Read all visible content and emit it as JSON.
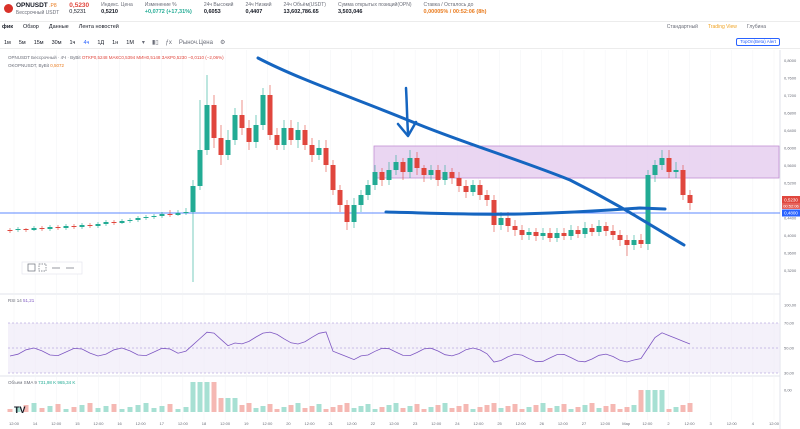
{
  "ticker": {
    "symbol": "OPNUSDT",
    "exchange_tag": ".P8",
    "price": "0,5230",
    "subtitle": "Бессрочный USDT",
    "sub_price": "0,5231",
    "stats": [
      {
        "label": "Индекс. Цена",
        "value": "0,5210",
        "tone": "normal"
      },
      {
        "label": "Изменение %",
        "value": "+0,0772 (+17,31%)",
        "tone": "green"
      },
      {
        "label": "24ч Высокий",
        "value": "0,6053",
        "tone": "normal"
      },
      {
        "label": "24ч Низкий",
        "value": "0,4407",
        "tone": "normal"
      },
      {
        "label": "24ч Объём(USDT)",
        "value": "13,602,786.65",
        "tone": "normal"
      },
      {
        "label": "Сумма открытых позиций(OPN)",
        "value": "3,503,046",
        "tone": "normal"
      },
      {
        "label": "Ставка / Осталось до",
        "value": "0,00005% / 00:52:06 (8h)",
        "tone": "orange"
      }
    ]
  },
  "tabs": [
    {
      "label": "фик",
      "active": true
    },
    {
      "label": "Обзор",
      "active": false
    },
    {
      "label": "Данные",
      "active": false
    },
    {
      "label": "Лента новостей",
      "active": false
    }
  ],
  "right_tabs": [
    {
      "label": "Стандартный",
      "tone": "normal"
    },
    {
      "label": "Trading View",
      "tone": "orange"
    },
    {
      "label": "Глубина",
      "tone": "normal"
    }
  ],
  "toolbar": {
    "timeframes": [
      "1м",
      "5м",
      "15м",
      "30м",
      "1ч",
      "4ч",
      "1Д",
      "1н",
      "1М"
    ],
    "active_timeframe": "4ч",
    "price_type": "Рыноч.Цена",
    "tv_button": "TopOn(Beta) Alert"
  },
  "legend": {
    "line1": "OPNUSDT Бессрочный · 4Ч · ByBit",
    "ohlc": "ОТКР0,5248 МАКС0,5394 МИН0,5148 ЗАКР0,5230 −0,0110 (−2,06%)",
    "line2": "OKOPNUSDT, ByBit",
    "line2_value": "0,5072"
  },
  "rsi": {
    "label": "RSI 14",
    "value": "51,21"
  },
  "volume": {
    "label": "Объем SMA 9",
    "values": "731,98 K 965,34 K"
  },
  "price_axis": [
    "0,8000",
    "0,7600",
    "0,7200",
    "0,6800",
    "0,6400",
    "0,6000",
    "0,5600",
    "0,5200",
    "0,4800",
    "0,4400",
    "0,4000",
    "0,3600",
    "0,3200"
  ],
  "price_tags": {
    "current": "0,5230",
    "time_left": "00:52:06",
    "line": "0,4800"
  },
  "rsi_axis": [
    "100,00",
    "70,00",
    "50,00",
    "30,00",
    "0,00"
  ],
  "time_axis": [
    "12:00",
    "14",
    "12:00",
    "15",
    "12:00",
    "16",
    "12:00",
    "17",
    "12:00",
    "18",
    "12:00",
    "19",
    "12:00",
    "20",
    "12:00",
    "21",
    "12:00",
    "22",
    "12:00",
    "23",
    "12:00",
    "24",
    "12:00",
    "25",
    "12:00",
    "26",
    "12:00",
    "27",
    "12:00",
    "Мар",
    "12:00",
    "2",
    "12:00",
    "3",
    "12:00",
    "4",
    "12:00"
  ],
  "colors": {
    "up": "#22ab94",
    "down": "#e0463d",
    "annotation": "#1565c0",
    "zone": "#d9b3e6",
    "hline": "#2962ff"
  },
  "watermark": "TV"
}
